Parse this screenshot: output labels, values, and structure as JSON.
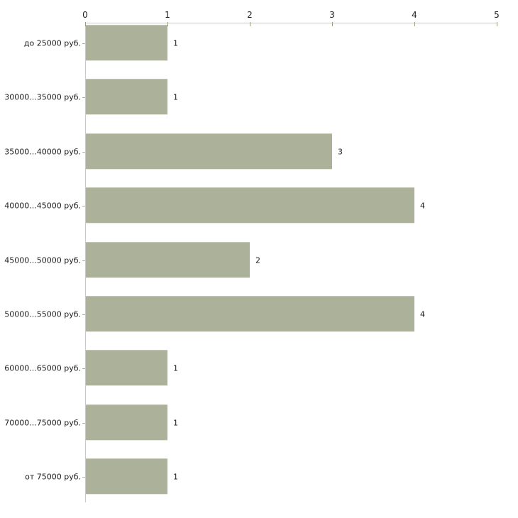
{
  "chart_data": {
    "type": "bar",
    "orientation": "horizontal",
    "title": "",
    "xlabel": "",
    "ylabel": "",
    "categories": [
      "до 25000 руб.",
      "30000...35000 руб.",
      "35000...40000 руб.",
      "40000...45000 руб.",
      "45000...50000 руб.",
      "50000...55000 руб.",
      "60000...65000 руб.",
      "70000...75000 руб.",
      "от 75000 руб."
    ],
    "values": [
      1,
      1,
      3,
      4,
      2,
      4,
      1,
      1,
      1
    ],
    "xlim": [
      0,
      5
    ],
    "x_ticks": [
      "0",
      "1",
      "2",
      "3",
      "4",
      "5"
    ],
    "axis_position": "top",
    "grid": false,
    "legend": false,
    "bar_color": "#acb199",
    "axis_line_color": "#c9c9c9",
    "tick_color": "#9d9d7e",
    "text_color": "#1c1c1c",
    "background_color": "#ffffff"
  }
}
